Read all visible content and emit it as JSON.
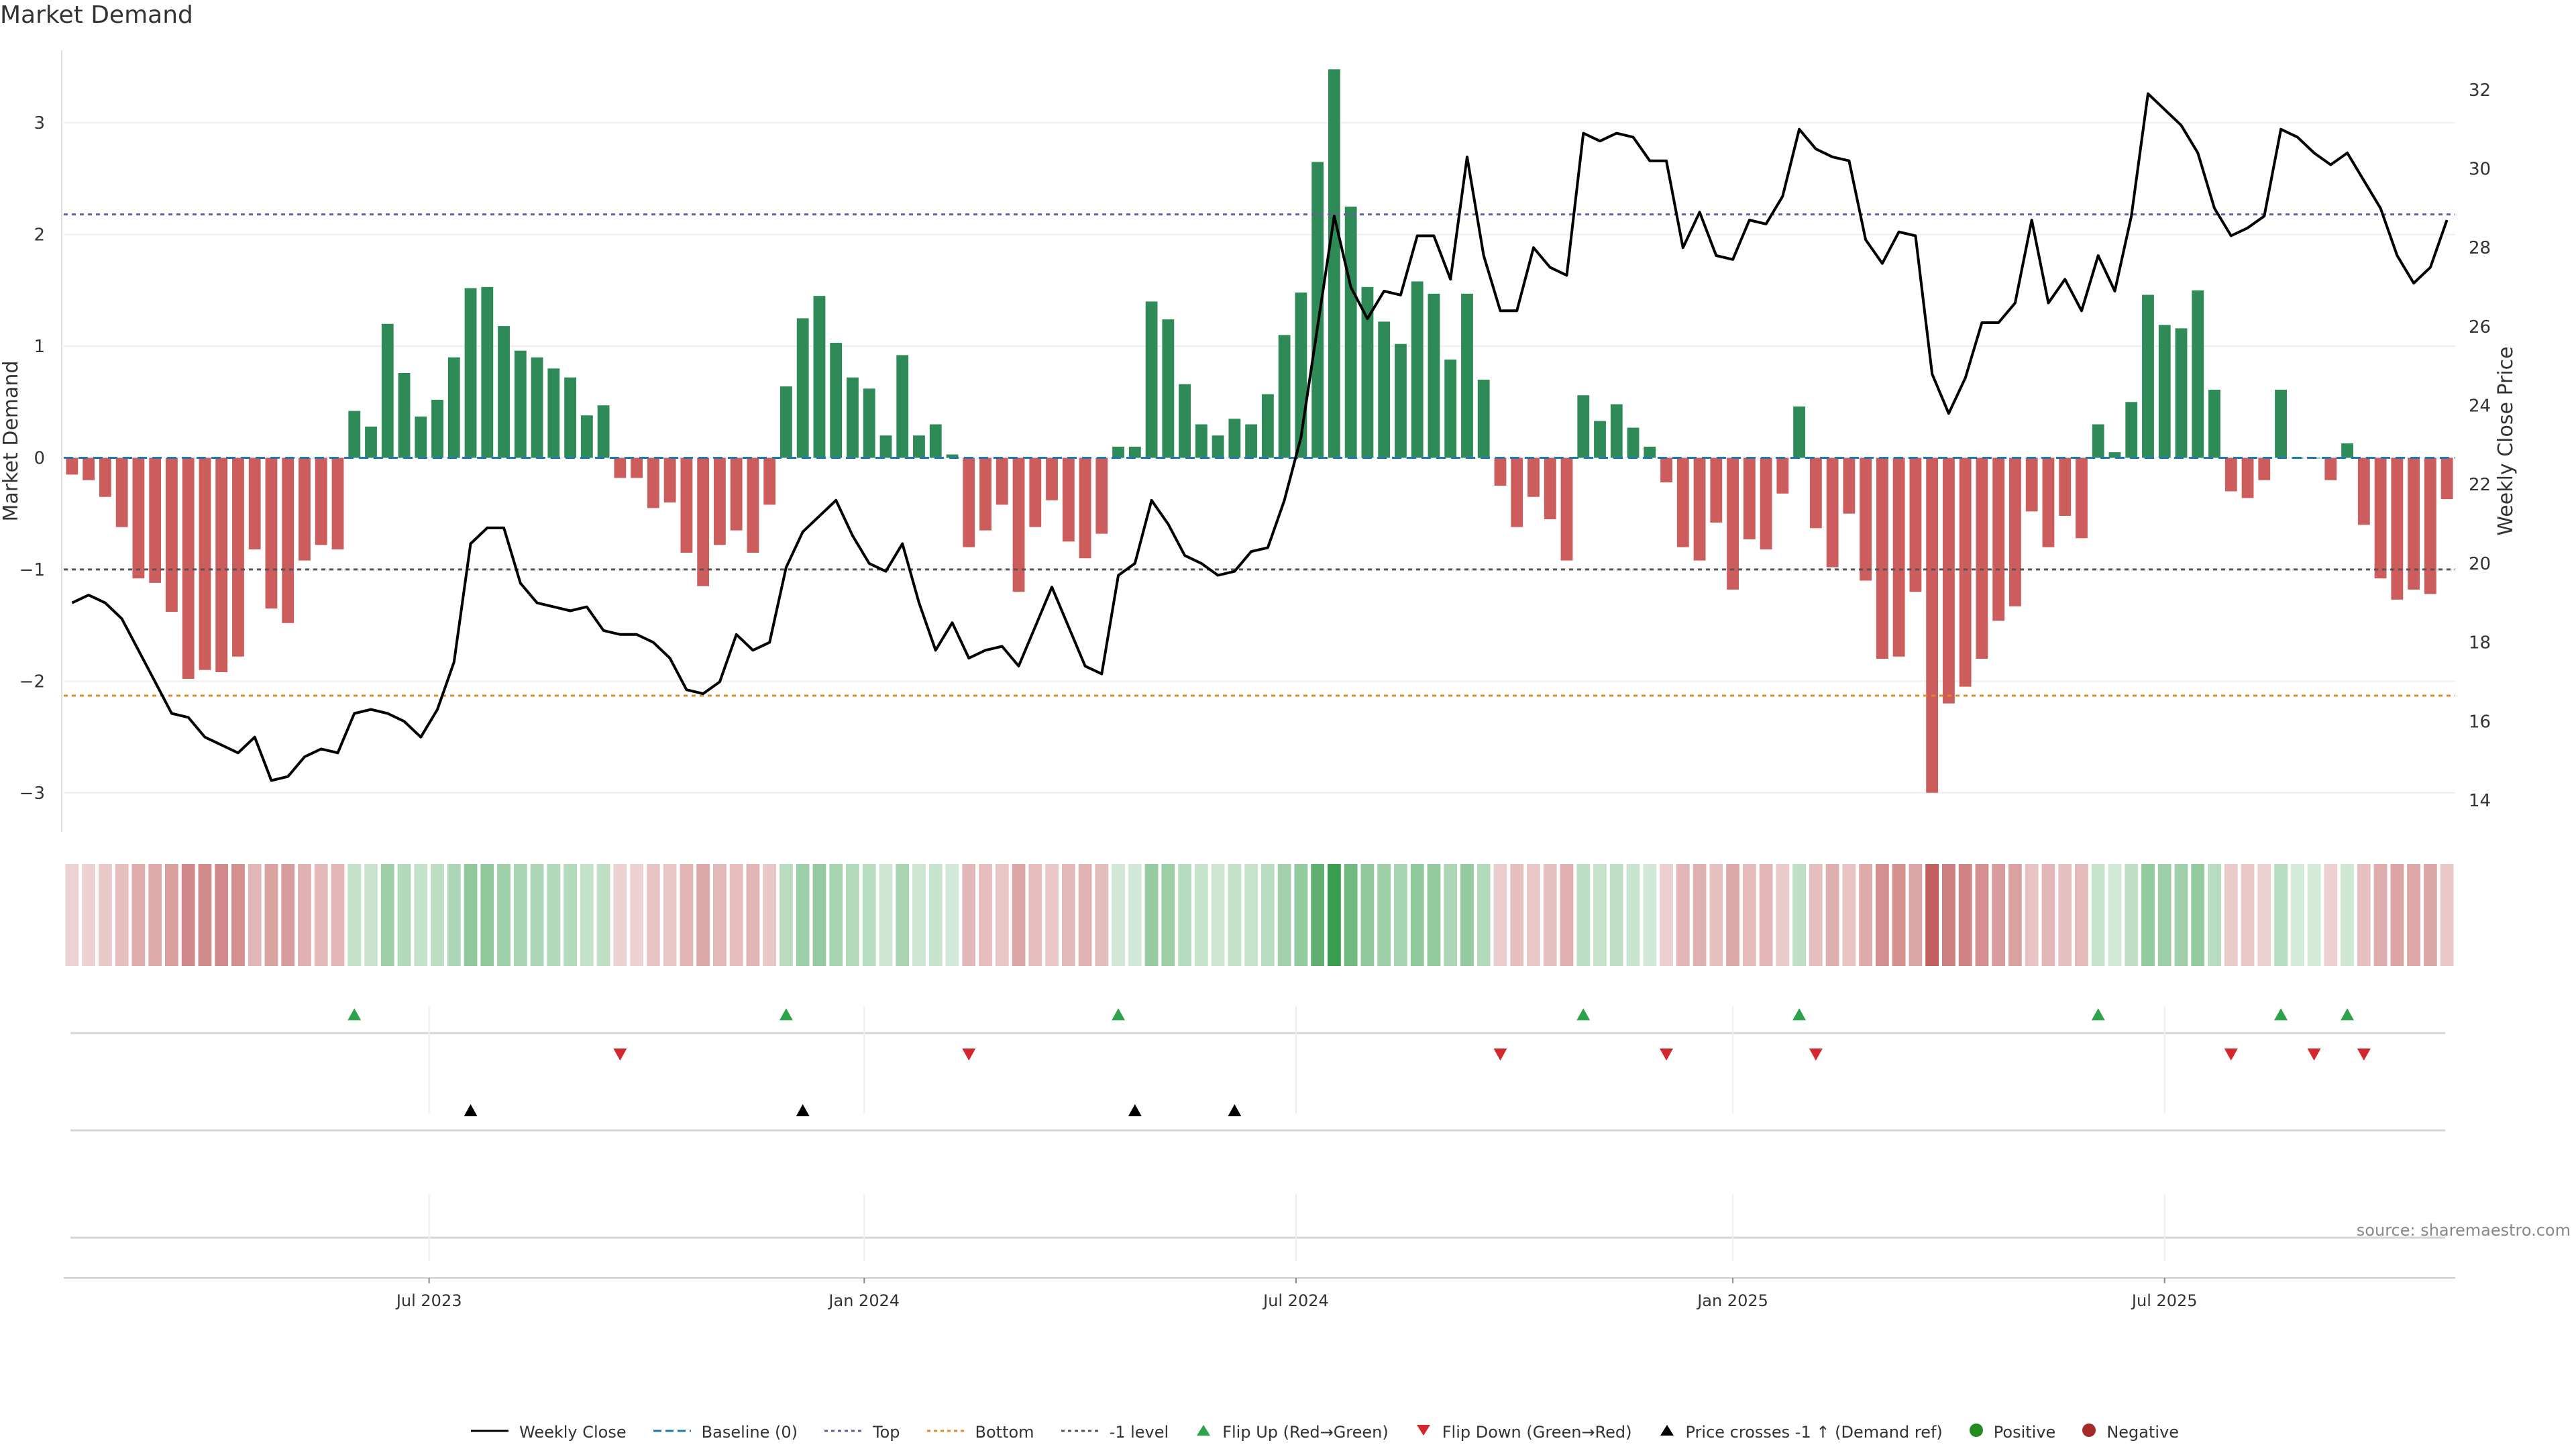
{
  "title": "Market Demand",
  "source": "source: sharemaestro.com",
  "colors": {
    "positive": "#2e8b57",
    "negative": "#cd5c5c",
    "line": "#000000",
    "top": "#6a5a9e",
    "bottom": "#e08a2a",
    "minus1": "#555555",
    "baseline": "#1f77b4"
  },
  "legend": [
    {
      "label": "Weekly Close",
      "symbol": "solid-line"
    },
    {
      "label": "Baseline (0)",
      "symbol": "dashed-blue"
    },
    {
      "label": "Top",
      "symbol": "dotted-purple"
    },
    {
      "label": "Bottom",
      "symbol": "dotted-orange"
    },
    {
      "label": "-1 level",
      "symbol": "dotted-gray"
    },
    {
      "label": "Flip Up (Red→Green)",
      "symbol": "triangle-up-green"
    },
    {
      "label": "Flip Down (Green→Red)",
      "symbol": "triangle-down-red"
    },
    {
      "label": "Price crosses -1 ↑ (Demand ref)",
      "symbol": "triangle-up-black"
    },
    {
      "label": "Positive",
      "symbol": "dot-green"
    },
    {
      "label": "Negative",
      "symbol": "dot-red"
    }
  ],
  "chart_data": {
    "type": "bar",
    "title": "Market Demand",
    "ylabel": "Market Demand",
    "ylabel_right": "Weekly Close Price",
    "ylim": [
      -3.35,
      3.65
    ],
    "y2lim": [
      13.2,
      33.0
    ],
    "yticks": [
      -3,
      -2,
      -1,
      0,
      1,
      2,
      3
    ],
    "y2ticks": [
      14,
      16,
      18,
      20,
      22,
      24,
      26,
      28,
      30,
      32
    ],
    "x_ticks": [
      {
        "label": "Jul 2023",
        "week": 21.5
      },
      {
        "label": "Jan 2024",
        "week": 47.7
      },
      {
        "label": "Jul 2024",
        "week": 73.7
      },
      {
        "label": "Jan 2025",
        "week": 100
      },
      {
        "label": "Jul 2025",
        "week": 126
      }
    ],
    "reference_lines": {
      "top": 2.18,
      "bottom": -2.13,
      "minus1": -1.0,
      "baseline": 0
    },
    "demand": [
      -0.15,
      -0.2,
      -0.35,
      -0.62,
      -1.08,
      -1.12,
      -1.38,
      -1.98,
      -1.9,
      -1.92,
      -1.78,
      -0.82,
      -1.35,
      -1.48,
      -0.92,
      -0.78,
      -0.82,
      0.42,
      0.28,
      1.2,
      0.76,
      0.37,
      0.52,
      0.9,
      1.52,
      1.53,
      1.18,
      0.96,
      0.9,
      0.8,
      0.72,
      0.38,
      0.47,
      -0.18,
      -0.18,
      -0.45,
      -0.4,
      -0.85,
      -1.15,
      -0.78,
      -0.65,
      -0.85,
      -0.42,
      0.64,
      1.25,
      1.45,
      1.03,
      0.72,
      0.62,
      0.2,
      0.92,
      0.2,
      0.3,
      0.03,
      -0.8,
      -0.65,
      -0.42,
      -1.2,
      -0.62,
      -0.38,
      -0.75,
      -0.9,
      -0.68,
      0.1,
      0.1,
      1.4,
      1.24,
      0.66,
      0.3,
      0.2,
      0.35,
      0.3,
      0.57,
      1.1,
      1.48,
      2.65,
      3.48,
      2.25,
      1.53,
      1.22,
      1.02,
      1.58,
      1.47,
      0.88,
      1.47,
      0.7,
      -0.25,
      -0.62,
      -0.35,
      -0.55,
      -0.92,
      0.56,
      0.33,
      0.48,
      0.27,
      0.1,
      -0.22,
      -0.8,
      -0.92,
      -0.58,
      -1.18,
      -0.73,
      -0.82,
      -0.32,
      0.46,
      -0.63,
      -0.98,
      -0.5,
      -1.1,
      -1.8,
      -1.78,
      -1.2,
      -3.0,
      -2.2,
      -2.05,
      -1.8,
      -1.46,
      -1.33,
      -0.48,
      -0.8,
      -0.52,
      -0.72,
      0.3,
      0.05,
      0.5,
      1.46,
      1.19,
      1.16,
      1.5,
      0.61,
      -0.3,
      -0.36,
      -0.2,
      0.61,
      0.0,
      0.0,
      -0.2,
      0.13,
      -0.6,
      -1.08,
      -1.27,
      -1.18,
      -1.22,
      -0.37
    ],
    "close": [
      19.0,
      19.2,
      19.0,
      18.6,
      17.8,
      17.0,
      16.2,
      16.1,
      15.6,
      15.4,
      15.2,
      15.6,
      14.5,
      14.6,
      15.1,
      15.3,
      15.2,
      16.2,
      16.3,
      16.2,
      16.0,
      15.6,
      16.3,
      17.5,
      20.5,
      20.9,
      20.9,
      19.5,
      19.0,
      18.9,
      18.8,
      18.9,
      18.3,
      18.2,
      18.2,
      18.0,
      17.6,
      16.8,
      16.7,
      17.0,
      18.2,
      17.8,
      18.0,
      19.9,
      20.8,
      21.2,
      21.6,
      20.7,
      20.0,
      19.8,
      20.5,
      19.0,
      17.8,
      18.5,
      17.6,
      17.8,
      17.9,
      17.4,
      18.4,
      19.4,
      18.4,
      17.4,
      17.2,
      19.7,
      20.0,
      21.6,
      21.0,
      20.2,
      20.0,
      19.7,
      19.8,
      20.3,
      20.4,
      21.6,
      23.2,
      26.0,
      28.8,
      27.0,
      26.2,
      26.9,
      26.8,
      28.3,
      28.3,
      27.2,
      30.3,
      27.8,
      26.4,
      26.4,
      28.0,
      27.5,
      27.3,
      30.9,
      30.7,
      30.9,
      30.8,
      30.2,
      30.2,
      28.0,
      28.9,
      27.8,
      27.7,
      28.7,
      28.6,
      29.3,
      31.0,
      30.5,
      30.3,
      30.2,
      28.2,
      27.6,
      28.4,
      28.3,
      24.8,
      23.8,
      24.7,
      26.1,
      26.1,
      26.6,
      28.7,
      26.6,
      27.2,
      26.4,
      27.8,
      26.9,
      28.8,
      31.9,
      31.5,
      31.1,
      30.4,
      29.0,
      28.3,
      28.5,
      28.8,
      31.0,
      30.8,
      30.4,
      30.1,
      30.4,
      29.7,
      29.0,
      27.8,
      27.1,
      27.5,
      28.7
    ],
    "flip_up_weeks": [
      17,
      43,
      63,
      91,
      104,
      122,
      133,
      137
    ],
    "flip_down_weeks": [
      33,
      54,
      86,
      96,
      105,
      130,
      135,
      138
    ],
    "price_cross_weeks": [
      24,
      44,
      64,
      70
    ]
  }
}
